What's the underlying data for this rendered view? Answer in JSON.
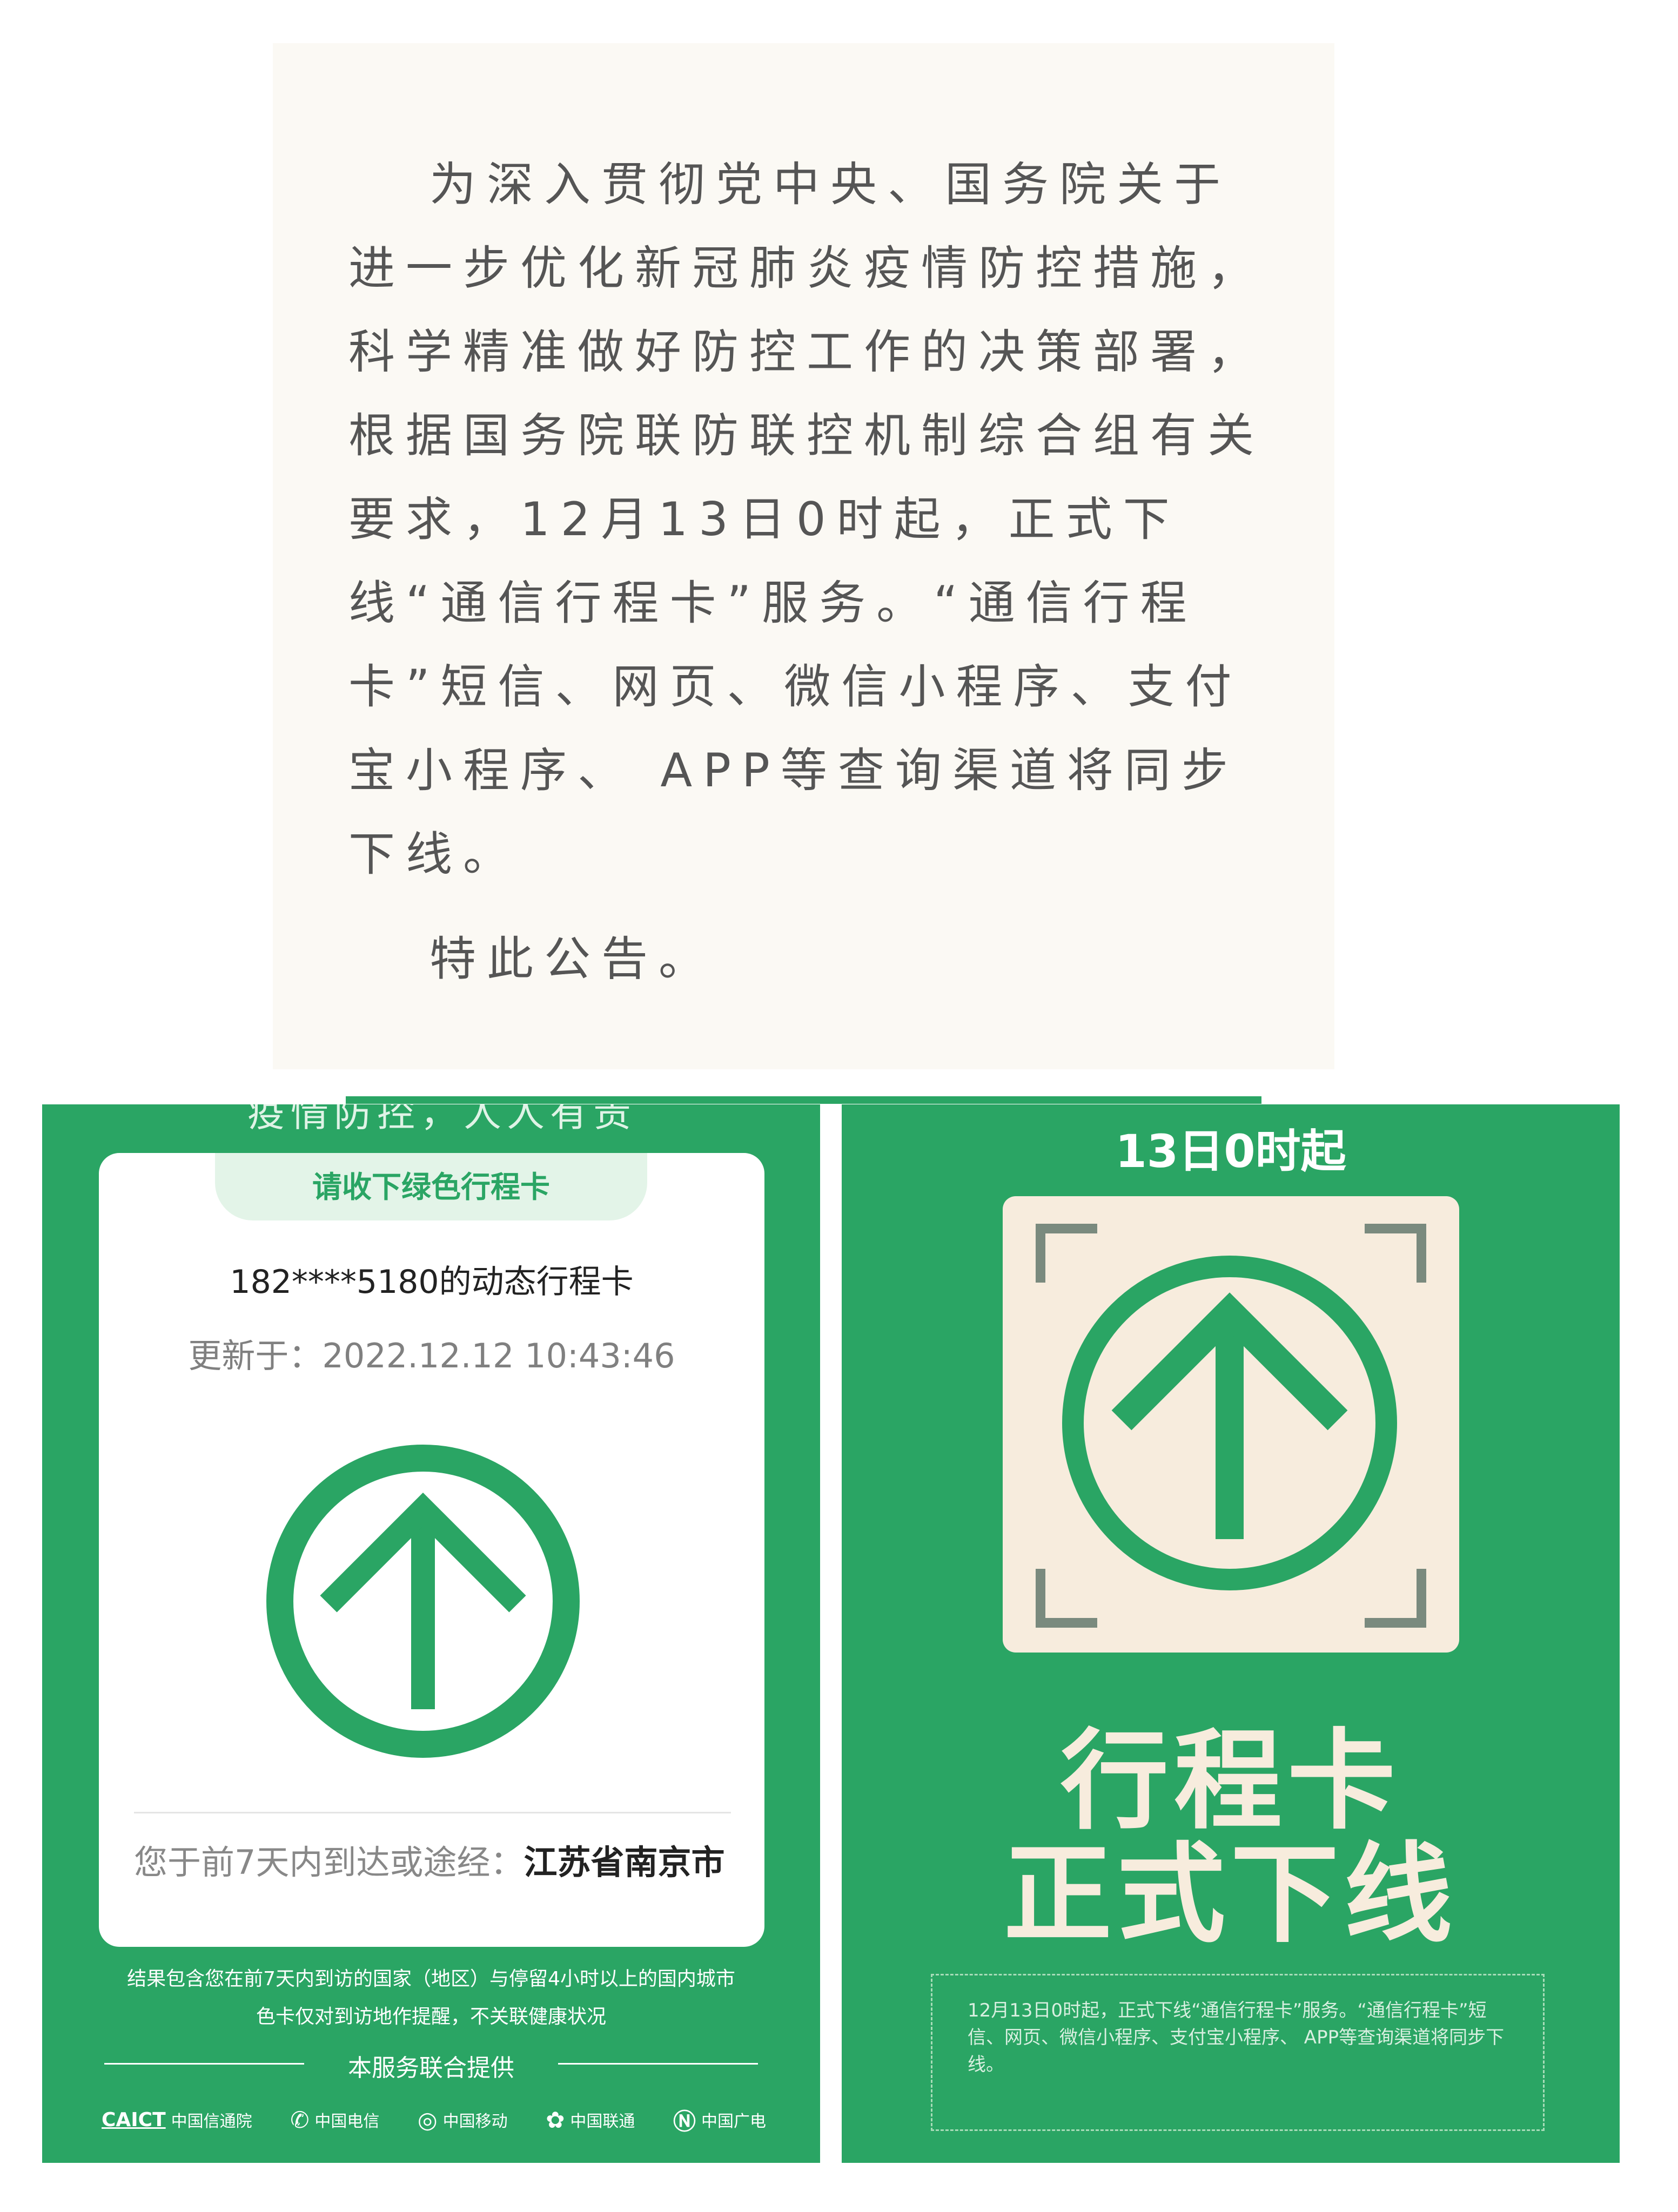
{
  "announcement": {
    "paragraph": "为深入贯彻党中央、国务院关于进一步优化新冠肺炎疫情防控措施，科学精准做好防控工作的决策部署，根据国务院联防联控机制综合组有关要求，12月13日0时起，正式下线“通信行程卡”服务。“通信行程卡”短信、网页、微信小程序、支付宝小程序、 APP等查询渠道将同步下线。",
    "closing": "特此公告。"
  },
  "left_panel": {
    "cut_text": "疫情防控，人人有责",
    "card": {
      "tab_label": "请收下绿色行程卡",
      "title": "182****5180的动态行程卡",
      "update_prefix": "更新于：",
      "update_time": "2022.12.12 10:43:46",
      "visited_prefix": "您于前7天内到达或途经：",
      "visited_place": "江苏省南京市"
    },
    "note_line1": "结果包含您在前7天内到访的国家（地区）与停留4小时以上的国内城市",
    "note_line2": "色卡仅对到访地作提醒，不关联健康状况",
    "provided_by": "本服务联合提供",
    "logos": [
      {
        "mark": "CAICT",
        "name": "中国信通院"
      },
      {
        "mark": "✆",
        "name": "中国电信"
      },
      {
        "mark": "◎",
        "name": "中国移动"
      },
      {
        "mark": "✿",
        "name": "中国联通"
      },
      {
        "mark": "Ⓝ",
        "name": "中国广电"
      }
    ]
  },
  "right_panel": {
    "top_text": "13日0时起",
    "headline_line1": "行程卡",
    "headline_line2": "正式下线",
    "notice": "12月13日0时起，正式下线“通信行程卡”服务。“通信行程卡”短信、网页、微信小程序、支付宝小程序、 APP等查询渠道将同步下线。"
  },
  "colors": {
    "green": "#2aa564",
    "cream": "#f7ecdd",
    "paper": "#fbf9f4"
  },
  "icons": {
    "arrow": "up-arrow-circle-icon"
  }
}
